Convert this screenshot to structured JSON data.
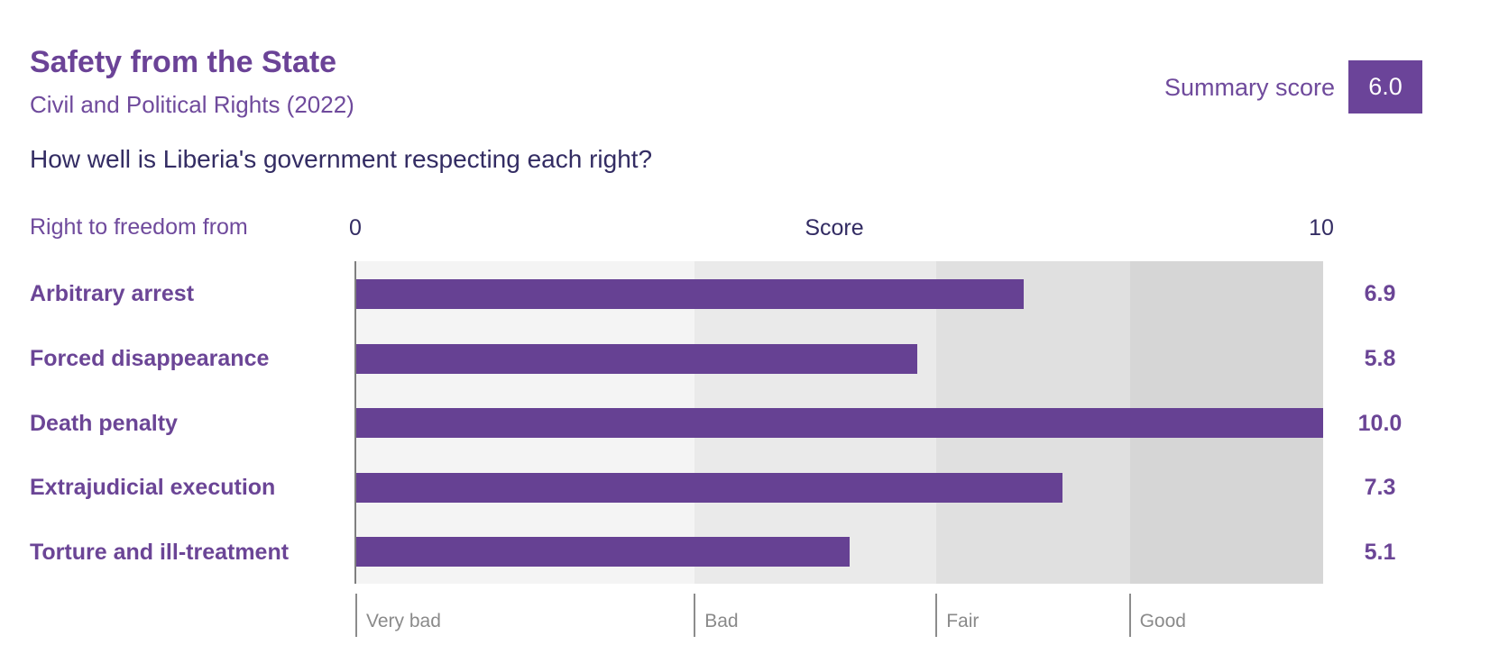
{
  "header": {
    "title": "Safety from the State",
    "subtitle": "Civil and Political Rights (2022)",
    "summary_label": "Summary score",
    "summary_value": "6.0"
  },
  "question": "How well is Liberia's government respecting each right?",
  "chart_data": {
    "type": "bar",
    "orientation": "horizontal",
    "title": "Safety from the State",
    "subtitle": "Civil and Political Rights (2022)",
    "group_label": "Right to freedom from",
    "axis_label": "Score",
    "axis_min_label": "0",
    "axis_max_label": "10",
    "xlim": [
      0,
      10
    ],
    "grid": false,
    "legend_position": "none",
    "categories": [
      "Arbitrary arrest",
      "Forced disappearance",
      "Death penalty",
      "Extrajudicial execution",
      "Torture and ill-treatment"
    ],
    "values": [
      6.9,
      5.8,
      10.0,
      7.3,
      5.1
    ],
    "value_labels": [
      "6.9",
      "5.8",
      "10.0",
      "7.3",
      "5.1"
    ],
    "bands": [
      {
        "label": "Very bad",
        "from": 0,
        "to": 3.5,
        "color": "#f4f4f4"
      },
      {
        "label": "Bad",
        "from": 3.5,
        "to": 6,
        "color": "#eaeaea"
      },
      {
        "label": "Fair",
        "from": 6,
        "to": 8,
        "color": "#e0e0e0"
      },
      {
        "label": "Good",
        "from": 8,
        "to": 10,
        "color": "#d6d6d6"
      }
    ],
    "bar_color": "#664193"
  },
  "colors": {
    "accent_purple": "#6b4596",
    "dark_navy": "#332c63",
    "score_box_bg": "#6b4499",
    "score_box_text": "#ffffff",
    "band_label_gray": "#8a8a8a",
    "axis_line_gray": "#7f7f7f"
  }
}
